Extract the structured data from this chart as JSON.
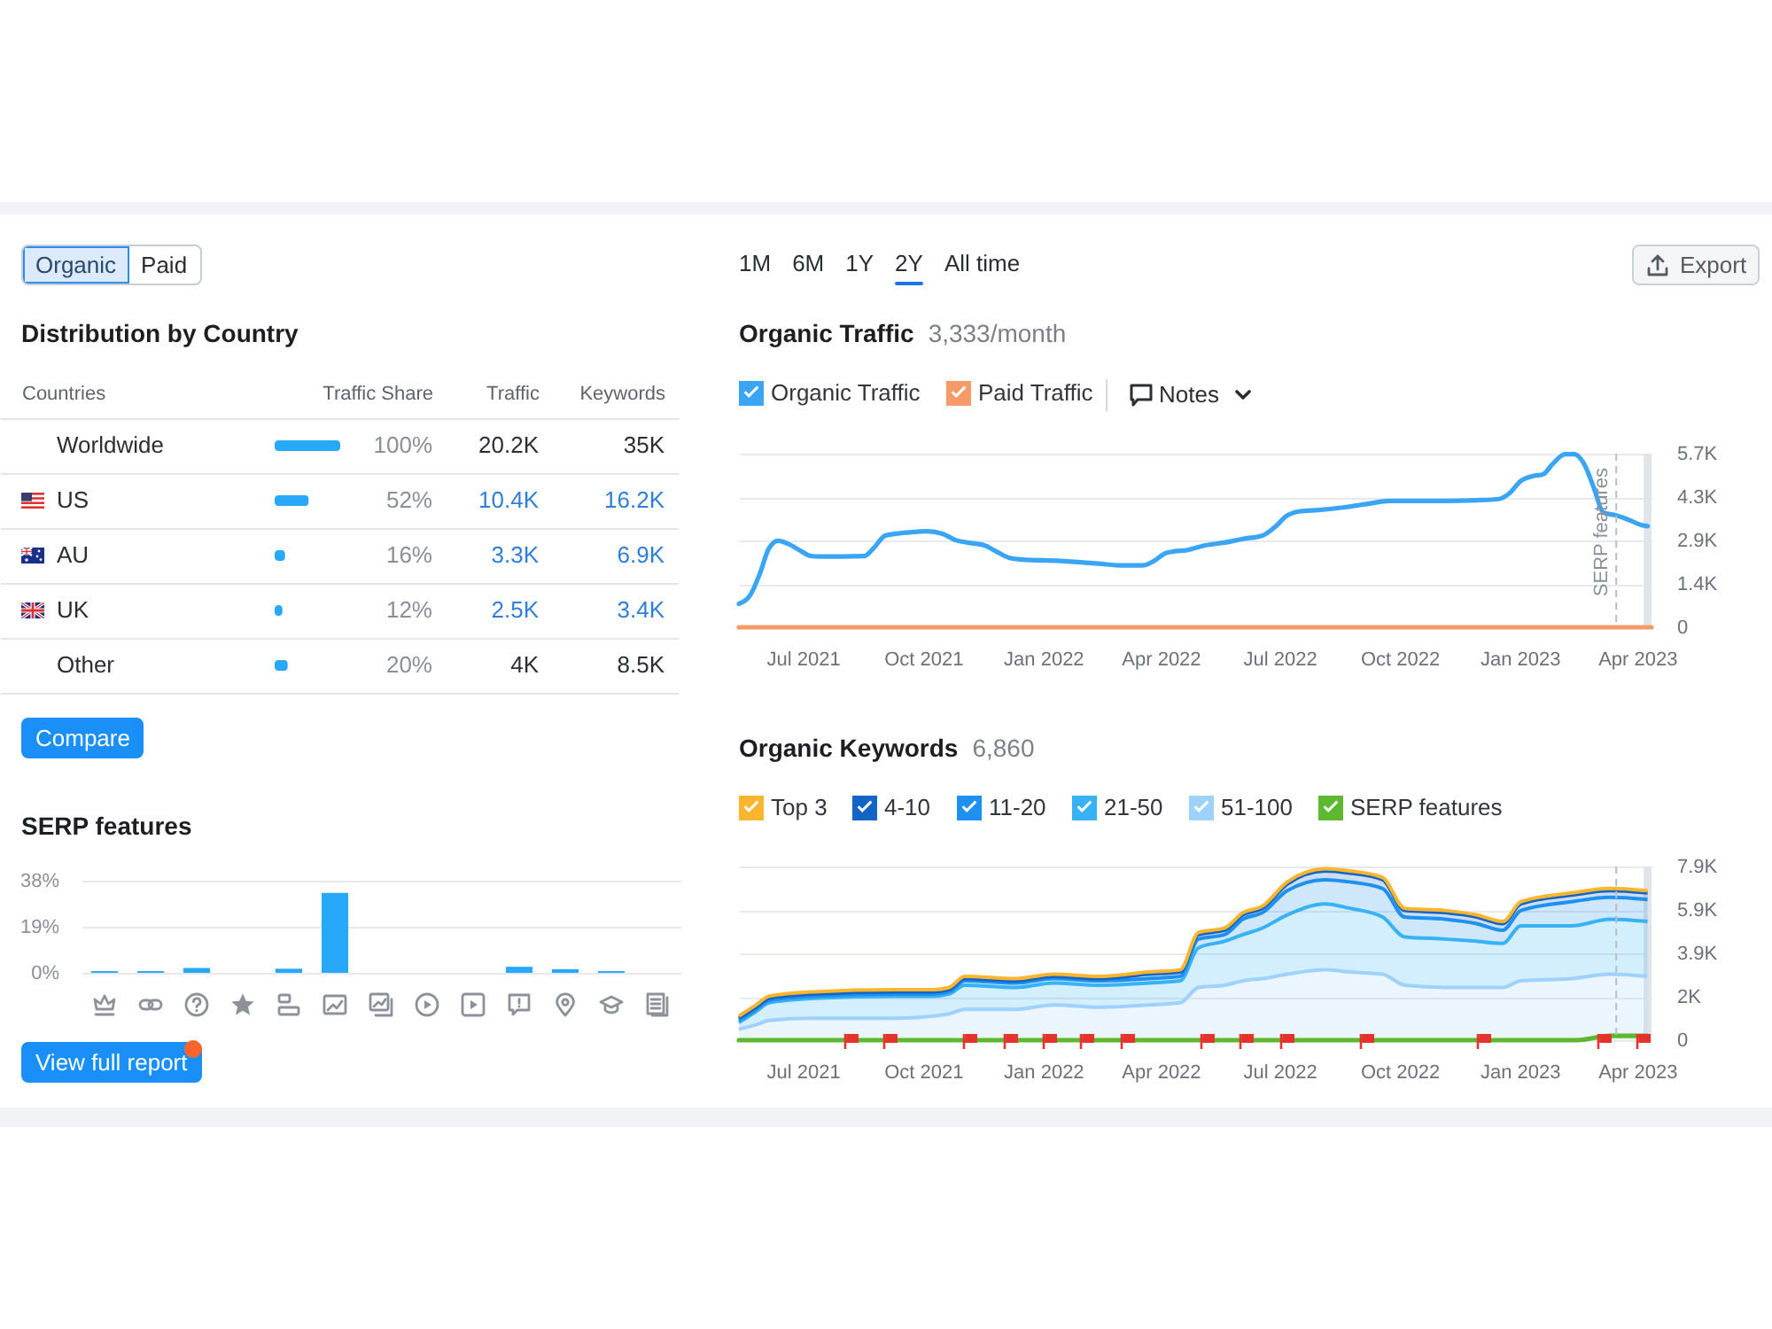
{
  "chart_data": [
    {
      "type": "bar",
      "orientation": "horizontal",
      "title": "Distribution by Country",
      "ylabel": "Countries",
      "xlabel": "Traffic Share",
      "categories": [
        "Worldwide",
        "US",
        "AU",
        "UK",
        "Other"
      ],
      "values": [
        100,
        52,
        16,
        12,
        20
      ],
      "value_labels": [
        "100%",
        "52%",
        "16%",
        "12%",
        "20%"
      ],
      "color": "#27a8f8",
      "grid": "y",
      "annotations": [
        "Organic",
        "Paid",
        "Compare"
      ]
    },
    {
      "type": "other",
      "title": "Traffic",
      "annotations": [
        "20.2K",
        "10.4K",
        "3.3K",
        "2.5K",
        "4K"
      ],
      "colors": [
        "#2b2d33",
        "#2f7fd9",
        "#2f7fd9",
        "#2f7fd9",
        "#2b2d33"
      ]
    },
    {
      "type": "other",
      "title": "Keywords",
      "annotations": [
        "35K",
        "16.2K",
        "6.9K",
        "3.4K",
        "8.5K"
      ],
      "colors": [
        "#2b2d33",
        "#2f7fd9",
        "#2f7fd9",
        "#2f7fd9",
        "#2b2d33"
      ]
    },
    {
      "type": "bar",
      "title": "SERP features",
      "categories": [
        null,
        null,
        null,
        null,
        null,
        null,
        null,
        null,
        null,
        null,
        null,
        null,
        null
      ],
      "values": [
        0.7,
        0.7,
        2,
        null,
        1.7,
        33,
        null,
        null,
        null,
        2.5,
        1.5,
        0.7,
        null
      ],
      "color": "#27a8f8",
      "ylim": [
        0,
        38
      ],
      "yticks": [
        {
          "value": 0,
          "label": "0%"
        },
        {
          "value": 19,
          "label": "19%"
        },
        {
          "value": 38,
          "label": "38%"
        }
      ],
      "grid": "y",
      "annotations": [
        "View full report"
      ]
    },
    {
      "type": "line",
      "title": "Organic Traffic",
      "subtitle": "3,333/month",
      "x": [
        "2021-05-13",
        "2021-05-22",
        "2021-05-29",
        "2021-06-05",
        "2021-06-12",
        "2021-06-22",
        "2021-06-30",
        "2021-07-07",
        "2021-07-14",
        "2021-08-17",
        "2021-08-24",
        "2021-09-02",
        "2021-09-10",
        "2021-09-19",
        "2021-10-04",
        "2021-10-16",
        "2021-10-26",
        "2021-11-04",
        "2021-11-17",
        "2021-11-26",
        "2021-12-06",
        "2021-12-16",
        "2022-01-14",
        "2022-02-12",
        "2022-03-03",
        "2022-03-18",
        "2022-03-27",
        "2022-04-04",
        "2022-04-11",
        "2022-04-21",
        "2022-05-05",
        "2022-05-20",
        "2022-06-03",
        "2022-06-18",
        "2022-06-27",
        "2022-07-07",
        "2022-07-17",
        "2022-07-31",
        "2022-08-20",
        "2022-09-08",
        "2022-09-23",
        "2022-10-12",
        "2022-11-05",
        "2022-11-29",
        "2022-12-16",
        "2022-12-24",
        "2023-01-02",
        "2023-01-12",
        "2023-01-19",
        "2023-01-26",
        "2023-02-05",
        "2023-02-12",
        "2023-02-19",
        "2023-02-27",
        "2023-03-06",
        "2023-03-16",
        "2023-03-26",
        "2023-04-04",
        "2023-04-09"
      ],
      "series": [
        {
          "name": "Organic Traffic",
          "color": "#3ba5f5",
          "values": [
            770,
            1080,
            1760,
            2590,
            2840,
            2690,
            2490,
            2340,
            2320,
            2340,
            2590,
            3010,
            3070,
            3110,
            3150,
            3070,
            2860,
            2780,
            2690,
            2490,
            2280,
            2220,
            2180,
            2090,
            2030,
            2030,
            2180,
            2420,
            2490,
            2530,
            2690,
            2780,
            2900,
            3010,
            3270,
            3670,
            3810,
            3850,
            3940,
            4060,
            4150,
            4150,
            4150,
            4170,
            4210,
            4390,
            4810,
            4970,
            5020,
            5350,
            5680,
            5680,
            5390,
            4560,
            3770,
            3670,
            3520,
            3360,
            3320
          ]
        },
        {
          "name": "Paid Traffic",
          "color": "#f79a6a",
          "x": [
            "2021-05-13",
            "2023-04-12"
          ],
          "values": [
            0,
            0
          ]
        }
      ],
      "xlim": [
        "2021-05-13",
        "2023-04-12"
      ],
      "xticks": [
        {
          "value": "2021-07-01",
          "label": "Jul 2021"
        },
        {
          "value": "2021-10-01",
          "label": "Oct 2021"
        },
        {
          "value": "2022-01-01",
          "label": "Jan 2022"
        },
        {
          "value": "2022-04-01",
          "label": "Apr 2022"
        },
        {
          "value": "2022-07-01",
          "label": "Jul 2022"
        },
        {
          "value": "2022-10-01",
          "label": "Oct 2022"
        },
        {
          "value": "2023-01-01",
          "label": "Jan 2023"
        },
        {
          "value": "2023-04-01",
          "label": "Apr 2023"
        }
      ],
      "ylim": [
        0,
        5700
      ],
      "yticks": [
        0,
        {
          "value": 1425,
          "label": "1.4K"
        },
        {
          "value": 2850,
          "label": "2.9K"
        },
        {
          "value": 4275,
          "label": "4.3K"
        },
        {
          "value": 5700,
          "label": "5.7K"
        }
      ],
      "grid": "y",
      "legend": "top left",
      "ref_lines": [
        {
          "axis": "x",
          "value": "2023-03-16",
          "label": "SERP features",
          "line_style": "dashed",
          "color": "#b9bdc4"
        }
      ],
      "bands": [
        {
          "axis": "x",
          "from": "2023-04-06",
          "to": "2023-04-12",
          "color": "#e1e4e8"
        }
      ],
      "annotations": [
        "1M",
        "6M",
        "1Y",
        "2Y",
        "All time",
        "Export",
        "Notes"
      ]
    },
    {
      "type": "area",
      "stacked": true,
      "title": "Organic Keywords",
      "subtitle": "6,860",
      "x": [
        "2021-05-13",
        "2021-05-26",
        "2021-06-05",
        "2021-07-09",
        "2021-09-10",
        "2021-10-09",
        "2021-10-21",
        "2021-11-02",
        "2021-12-11",
        "2022-01-09",
        "2022-02-12",
        "2022-03-23",
        "2022-04-16",
        "2022-04-30",
        "2022-05-20",
        "2022-06-03",
        "2022-06-18",
        "2022-07-07",
        "2022-08-05",
        "2022-08-24",
        "2022-09-18",
        "2022-10-05",
        "2022-11-05",
        "2022-11-29",
        "2022-12-19",
        "2023-01-02",
        "2023-02-10",
        "2023-03-11",
        "2023-04-09"
      ],
      "series": [
        {
          "name": "51-100",
          "color": "#9fd2fa",
          "values": [
            500,
            700,
            900,
            1000,
            1000,
            1100,
            1200,
            1400,
            1400,
            1600,
            1500,
            1600,
            1700,
            2400,
            2500,
            2700,
            2800,
            3000,
            3200,
            3100,
            3000,
            2500,
            2400,
            2400,
            2400,
            2700,
            2800,
            3000,
            2900
          ]
        },
        {
          "name": "21-50",
          "color": "#36b2f5",
          "values": [
            300,
            600,
            800,
            900,
            1000,
            900,
            900,
            1100,
            1000,
            1000,
            1000,
            1000,
            1000,
            1800,
            2000,
            2100,
            2300,
            2700,
            3000,
            2900,
            2600,
            2200,
            2200,
            2100,
            2000,
            2500,
            2400,
            2500,
            2500
          ]
        },
        {
          "name": "11-20",
          "color": "#1e90ef",
          "values": [
            100,
            100,
            100,
            100,
            100,
            100,
            100,
            200,
            200,
            200,
            200,
            200,
            200,
            400,
            300,
            700,
            700,
            1100,
            1100,
            1200,
            1300,
            900,
            900,
            800,
            600,
            700,
            1100,
            1000,
            1000
          ]
        },
        {
          "name": "4-10",
          "color": "#1265c5",
          "values": [
            100,
            100,
            100,
            100,
            100,
            100,
            100,
            100,
            100,
            100,
            100,
            200,
            200,
            200,
            200,
            200,
            200,
            300,
            400,
            400,
            400,
            300,
            300,
            300,
            300,
            300,
            300,
            300,
            300
          ]
        },
        {
          "name": "Top 3",
          "color": "#ffb52e",
          "values": [
            100,
            100,
            100,
            100,
            100,
            100,
            100,
            100,
            100,
            100,
            100,
            100,
            100,
            100,
            100,
            100,
            100,
            100,
            100,
            100,
            100,
            100,
            100,
            100,
            100,
            100,
            100,
            100,
            100
          ]
        },
        {
          "name": "SERP features",
          "type": "line",
          "color": "#5cb82e",
          "x": [
            "2021-05-13",
            "2023-02-14",
            "2023-03-11",
            "2023-04-09"
          ],
          "values": [
            0,
            0,
            200,
            200
          ]
        }
      ],
      "xlim": [
        "2021-05-13",
        "2023-04-12"
      ],
      "xticks": [
        {
          "value": "2021-07-01",
          "label": "Jul 2021"
        },
        {
          "value": "2021-10-01",
          "label": "Oct 2021"
        },
        {
          "value": "2022-01-01",
          "label": "Jan 2022"
        },
        {
          "value": "2022-04-01",
          "label": "Apr 2022"
        },
        {
          "value": "2022-07-01",
          "label": "Jul 2022"
        },
        {
          "value": "2022-10-01",
          "label": "Oct 2022"
        },
        {
          "value": "2023-01-01",
          "label": "Jan 2023"
        },
        {
          "value": "2023-04-01",
          "label": "Apr 2023"
        }
      ],
      "ylim": [
        0,
        7900
      ],
      "yticks": [
        0,
        {
          "value": 1975,
          "label": "2K"
        },
        {
          "value": 3950,
          "label": "3.9K"
        },
        {
          "value": 5925,
          "label": "5.9K"
        },
        {
          "value": 7900,
          "label": "7.9K"
        }
      ],
      "grid": "y",
      "legend": "top left",
      "ref_lines": [
        {
          "axis": "x",
          "value": "2023-03-16",
          "line_style": "dashed",
          "color": "#b9bdc4"
        }
      ],
      "bands": [
        {
          "axis": "x",
          "from": "2023-04-06",
          "to": "2023-04-12",
          "color": "#e1e4e8"
        }
      ]
    }
  ]
}
